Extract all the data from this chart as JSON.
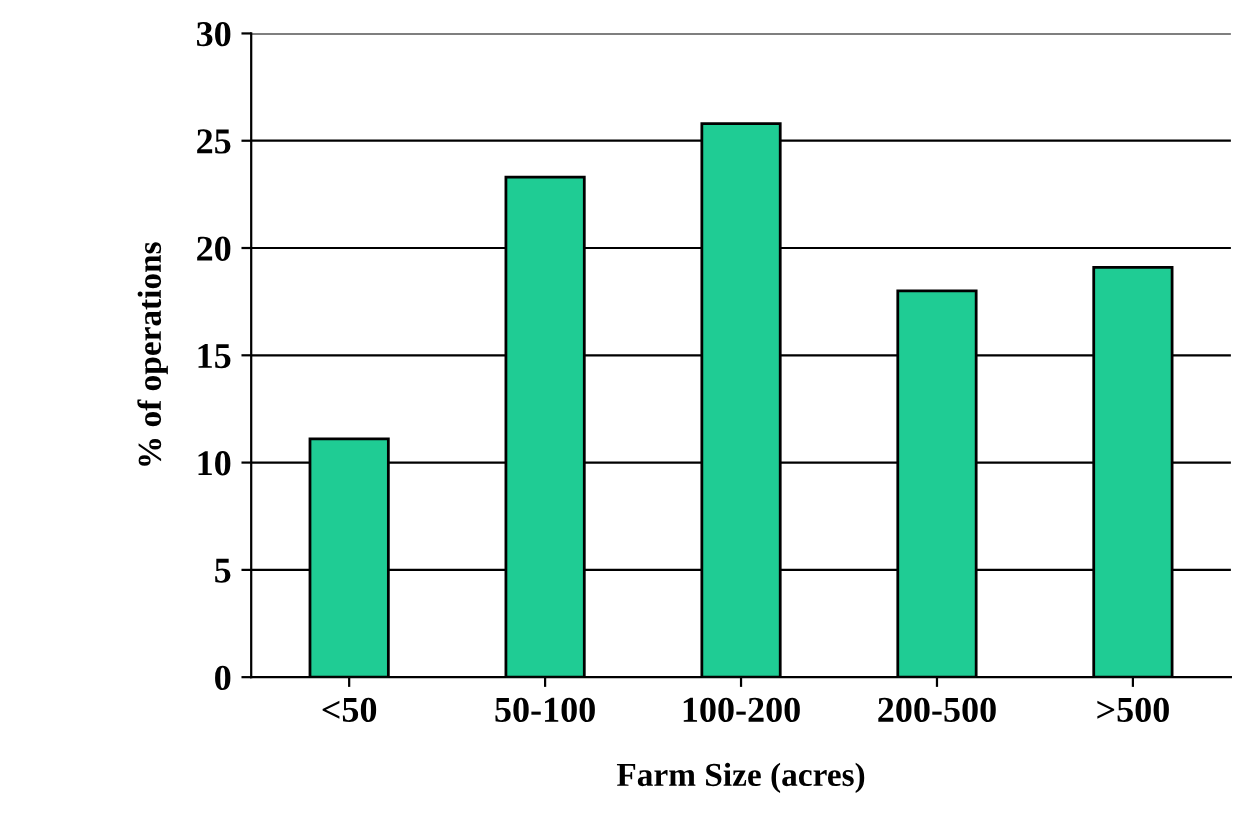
{
  "chart_data": {
    "type": "bar",
    "xlabel": "Farm Size (acres)",
    "ylabel": "% of operations",
    "categories": [
      "<50",
      "50-100",
      "100-200",
      "200-500",
      ">500"
    ],
    "values": [
      11.1,
      23.3,
      25.8,
      18.0,
      19.1
    ],
    "color": "#1fcc94",
    "ylim": [
      0,
      30
    ],
    "yticks": [
      0,
      5,
      10,
      15,
      20,
      25,
      30
    ],
    "grid": "y"
  }
}
